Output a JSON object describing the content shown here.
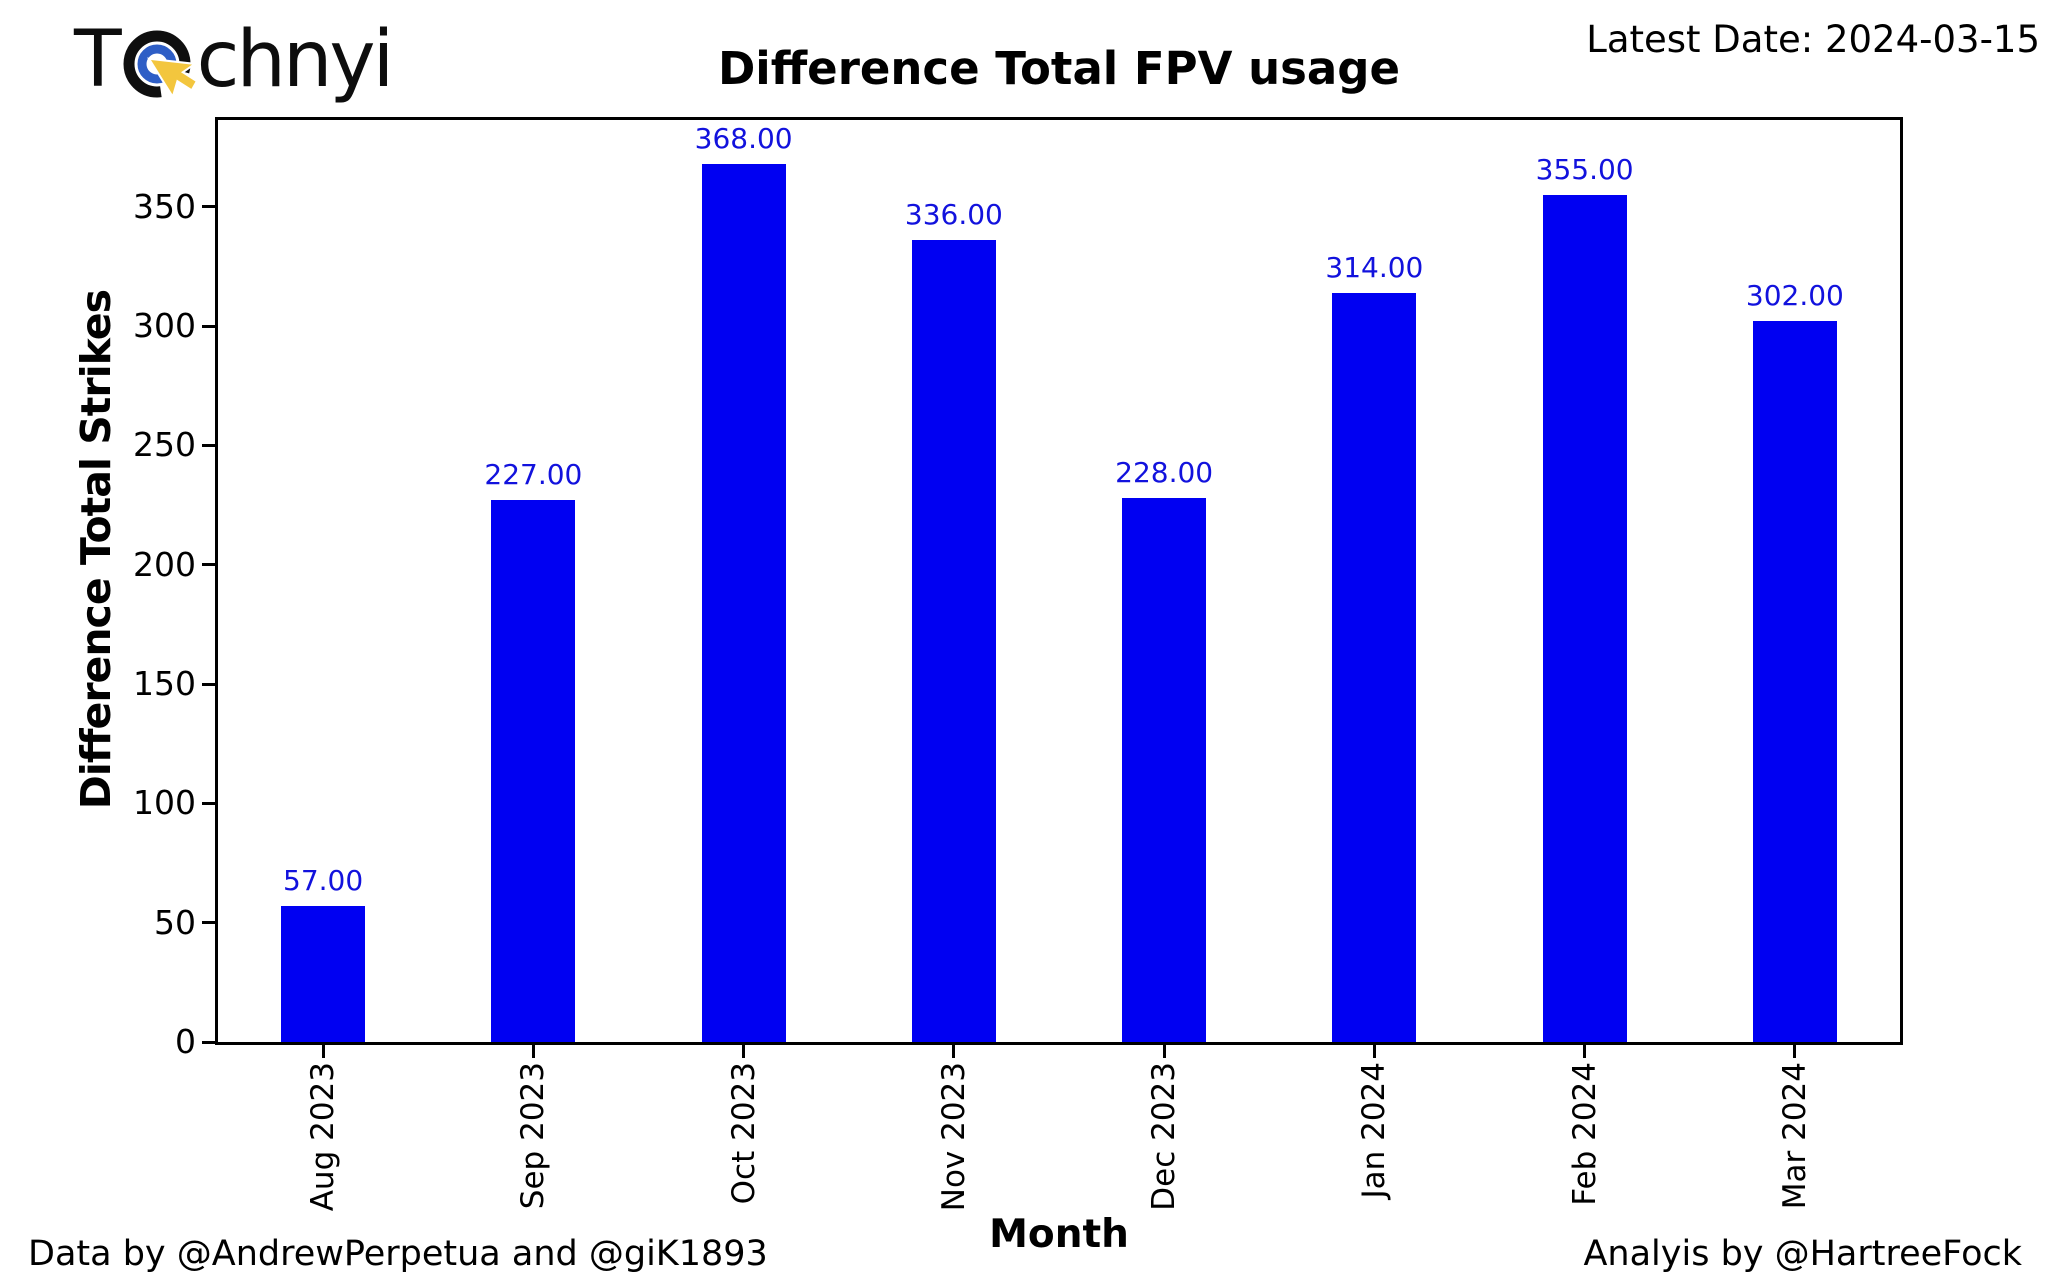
{
  "header": {
    "logo_text_pre": "T",
    "logo_text_post": "chnyi",
    "latest_date": "Latest Date: 2024-03-15"
  },
  "chart_data": {
    "type": "bar",
    "title": "Difference Total FPV usage",
    "xlabel": "Month",
    "ylabel": "Difference Total Strikes",
    "categories": [
      "Aug 2023",
      "Sep 2023",
      "Oct 2023",
      "Nov 2023",
      "Dec 2023",
      "Jan 2024",
      "Feb 2024",
      "Mar 2024"
    ],
    "values": [
      57,
      227,
      368,
      336,
      228,
      314,
      355,
      302
    ],
    "value_labels": [
      "57.00",
      "227.00",
      "368.00",
      "336.00",
      "228.00",
      "314.00",
      "355.00",
      "302.00"
    ],
    "yticks": [
      "0",
      "50",
      "100",
      "150",
      "200",
      "250",
      "300",
      "350"
    ],
    "ytick_values": [
      0,
      50,
      100,
      150,
      200,
      250,
      300,
      350
    ],
    "ylim": [
      0,
      386.4
    ],
    "grid": false,
    "legend": "none",
    "bar_color": "#0000f2",
    "value_label_color": "#1212dd"
  },
  "logo_icon": {
    "name": "target-cursor-icon",
    "ring_black": "#0f0f0f",
    "ring_blue": "#2e5ec6",
    "arrow_yellow": "#f3c63e"
  },
  "footer": {
    "left": "Data by @AndrewPerpetua and @giK1893",
    "right": "Analyis by @HartreeFock"
  }
}
